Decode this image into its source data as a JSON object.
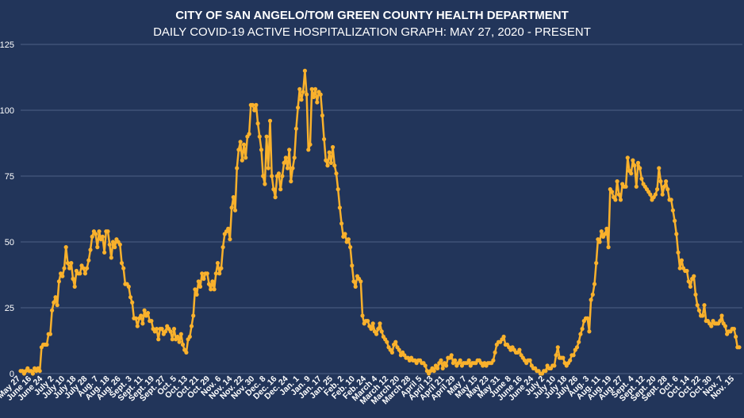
{
  "chart_data": {
    "type": "line",
    "title": "CITY OF SAN ANGELO/TOM GREEN COUNTY HEALTH DEPARTMENT",
    "subtitle": "DAILY COVID-19 ACTIVE HOSPITALIZATION GRAPH: MAY 27, 2020 - PRESENT",
    "xlabel": "",
    "ylabel": "",
    "ylim": [
      0,
      125
    ],
    "yticks": [
      "0",
      "25",
      "50",
      "75",
      "100",
      "125"
    ],
    "grid": true,
    "legend": "none",
    "line_color": "#f9b12c",
    "x_tick_labels": [
      "May 27",
      "June 16",
      "June 24",
      "July 2",
      "July 10",
      "July 18",
      "July 28",
      "Aug. 7",
      "Aug. 18",
      "Aug. 26",
      "Sept. 3",
      "Sept. 11",
      "Sept. 19",
      "Sept. 27",
      "Oct. 5",
      "Oct. 13",
      "Oct. 21",
      "Oct. 29",
      "Nov. 6",
      "Nov. 14",
      "Nov. 22",
      "Nov. 30",
      "Dec. 8",
      "Dec. 16",
      "Dec. 24",
      "Jan. 1",
      "Jan. 9",
      "Jan. 17",
      "Jan. 25",
      "Feb. 2",
      "Feb. 10",
      "Feb. 24",
      "March 4",
      "March 12",
      "March 20",
      "March 28",
      "April 5",
      "April 13",
      "April 21",
      "April 29",
      "May 7",
      "May 15",
      "May 23",
      "May 31",
      "June 8",
      "June 16",
      "June 24",
      "July 2",
      "July 10",
      "July 18",
      "July 26",
      "Aug. 3",
      "Aug. 11",
      "Aug. 19",
      "Aug. 27",
      "Sept. 4",
      "Sept. 12",
      "Sept. 20",
      "Sept. 28",
      "Oct. 6",
      "Oct. 14",
      "Oct. 22",
      "Oct. 30",
      "Nov. 7",
      "Nov. 15"
    ],
    "values": [
      1,
      1,
      0,
      1,
      2,
      1,
      1,
      0,
      2,
      1,
      2,
      1,
      10,
      11,
      11,
      11,
      15,
      15,
      24,
      27,
      29,
      26,
      35,
      38,
      37,
      40,
      48,
      42,
      40,
      42,
      36,
      33,
      39,
      38,
      38,
      41,
      40,
      38,
      40,
      43,
      47,
      52,
      54,
      53,
      48,
      54,
      51,
      52,
      46,
      54,
      54,
      49,
      44,
      50,
      48,
      51,
      50,
      49,
      42,
      40,
      34,
      34,
      33,
      29,
      27,
      21,
      21,
      18,
      21,
      22,
      19,
      24,
      22,
      23,
      20,
      20,
      17,
      16,
      17,
      13,
      17,
      17,
      15,
      16,
      18,
      17,
      16,
      13,
      17,
      13,
      14,
      12,
      15,
      11,
      9,
      8,
      13,
      14,
      18,
      22,
      32,
      30,
      35,
      33,
      38,
      36,
      38,
      38,
      34,
      32,
      35,
      32,
      38,
      42,
      38,
      40,
      48,
      53,
      54,
      55,
      51,
      63,
      67,
      62,
      78,
      85,
      88,
      81,
      87,
      82,
      90,
      91,
      102,
      102,
      100,
      102,
      95,
      90,
      85,
      75,
      72,
      90,
      78,
      96,
      75,
      70,
      67,
      75,
      76,
      70,
      75,
      80,
      82,
      78,
      85,
      73,
      78,
      82,
      93,
      101,
      108,
      104,
      107,
      115,
      106,
      85,
      87,
      108,
      105,
      108,
      103,
      107,
      106,
      98,
      89,
      81,
      79,
      84,
      80,
      86,
      79,
      76,
      70,
      63,
      57,
      52,
      53,
      50,
      51,
      48,
      41,
      35,
      33,
      37,
      36,
      35,
      22,
      19,
      20,
      20,
      18,
      17,
      19,
      16,
      15,
      17,
      19,
      16,
      14,
      13,
      12,
      10,
      9,
      8,
      11,
      12,
      10,
      9,
      7,
      8,
      7,
      6,
      6,
      5,
      6,
      5,
      5,
      4,
      5,
      5,
      4,
      4,
      3,
      1,
      0,
      1,
      2,
      1,
      3,
      2,
      4,
      5,
      2,
      4,
      3,
      6,
      6,
      7,
      4,
      5,
      3,
      4,
      5,
      3,
      4,
      4,
      4,
      5,
      3,
      4,
      4,
      4,
      5,
      5,
      4,
      3,
      4,
      3,
      4,
      4,
      4,
      5,
      8,
      11,
      12,
      12,
      13,
      14,
      11,
      11,
      10,
      9,
      10,
      9,
      8,
      8,
      9,
      7,
      6,
      5,
      4,
      5,
      5,
      3,
      2,
      2,
      1,
      1,
      0,
      0,
      1,
      1,
      3,
      2,
      2,
      3,
      3,
      7,
      10,
      6,
      6,
      6,
      4,
      3,
      4,
      5,
      7,
      7,
      9,
      10,
      12,
      15,
      17,
      20,
      21,
      21,
      16,
      28,
      30,
      34,
      42,
      51,
      50,
      54,
      52,
      53,
      55,
      48,
      70,
      69,
      67,
      66,
      73,
      68,
      66,
      72,
      71,
      71,
      82,
      77,
      76,
      81,
      79,
      71,
      80,
      78,
      74,
      72,
      71,
      70,
      69,
      68,
      66,
      67,
      68,
      70,
      78,
      73,
      68,
      71,
      73,
      70,
      66,
      66,
      62,
      58,
      53,
      46,
      40,
      43,
      40,
      39,
      39,
      35,
      33,
      36,
      37,
      30,
      26,
      24,
      22,
      22,
      26,
      20,
      20,
      19,
      18,
      20,
      19,
      19,
      19,
      20,
      22,
      19,
      18,
      15,
      16,
      16,
      17,
      17,
      14,
      10,
      10
    ]
  }
}
